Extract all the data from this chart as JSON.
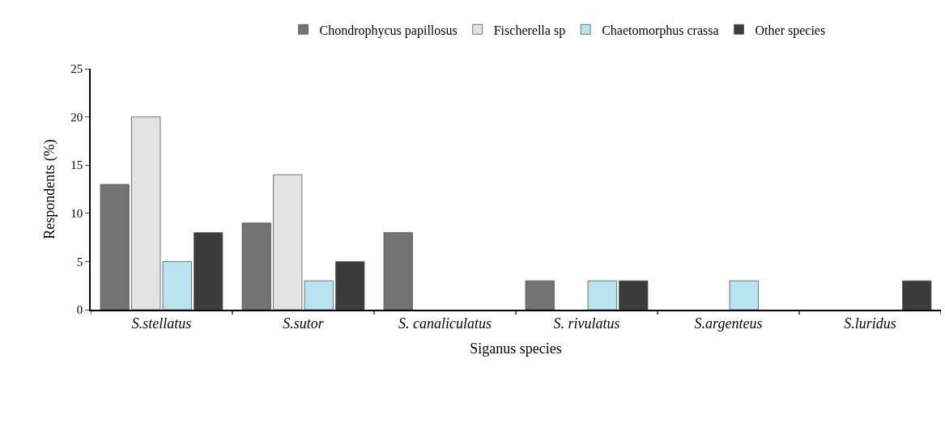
{
  "chart_data": {
    "type": "bar",
    "xlabel": "Siganus species",
    "ylabel": "Respondents (%)",
    "categories": [
      "S.stellatus",
      "S.sutor",
      "S. canaliculatus",
      "S. rivulatus",
      "S.argenteus",
      "S.luridus"
    ],
    "series": [
      {
        "name": "Chondrophycus papillosus",
        "color": "#737373",
        "values": [
          13,
          9,
          8,
          3,
          null,
          null
        ]
      },
      {
        "name": "Fischerella sp",
        "color": "#e3e3e3",
        "values": [
          20,
          14,
          null,
          null,
          null,
          null
        ]
      },
      {
        "name": "Chaetomorphus crassa",
        "color": "#b9e4ef",
        "values": [
          5,
          3,
          null,
          3,
          3,
          null
        ]
      },
      {
        "name": "Other species",
        "color": "#3b3b3b",
        "values": [
          8,
          5,
          null,
          3,
          null,
          3
        ]
      }
    ],
    "ylim": [
      0,
      25
    ],
    "yticks": [
      0,
      5,
      10,
      15,
      20,
      25
    ],
    "legend": "top"
  }
}
